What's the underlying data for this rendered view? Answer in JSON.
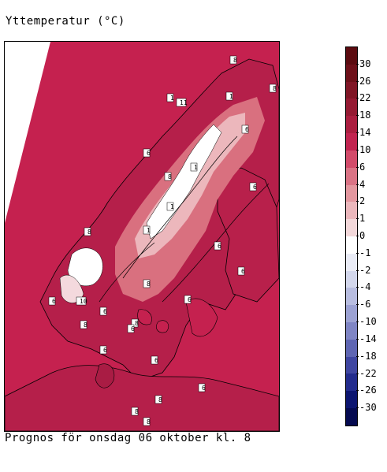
{
  "map": {
    "title": "Yttemperatur (°C)",
    "caption": "Prognos för onsdag 06 oktober kl. 8",
    "colors": {
      "sea": "#c5214f",
      "land_warm": "#b51f4a",
      "land_mild": "#d9707f",
      "land_cool": "#ecb7bc",
      "land_cold": "#f4d9dd",
      "snow": "#ffffff",
      "outside": "#ffffff",
      "coast": "#000000"
    },
    "point_labels": [
      "8",
      "8",
      "6",
      "11",
      "1",
      "1",
      "6",
      "8",
      "1",
      "6",
      "1",
      "1",
      "8",
      "10",
      "6",
      "6",
      "8",
      "6",
      "6",
      "8",
      "6",
      "6",
      "8",
      "8",
      "8",
      "6",
      "6",
      "6",
      "8"
    ]
  },
  "legend": {
    "labels": [
      "30",
      "26",
      "22",
      "18",
      "14",
      "10",
      "6",
      "4",
      "2",
      "1",
      "0",
      "-1",
      "-2",
      "-4",
      "-6",
      "-10",
      "-14",
      "-18",
      "-22",
      "-26",
      "-30"
    ],
    "colors": [
      "#5b0b10",
      "#6d1019",
      "#801626",
      "#951a33",
      "#ab1e40",
      "#c12450",
      "#d24b6a",
      "#da7385",
      "#e3979f",
      "#ebb7bc",
      "#f3d8da",
      "#ffffff",
      "#eaecf6",
      "#d3d7ec",
      "#b8bde0",
      "#9ca2d3",
      "#7f85c4",
      "#5f66b3",
      "#3f46a1",
      "#232c8d",
      "#0c1570",
      "#050a50"
    ]
  }
}
